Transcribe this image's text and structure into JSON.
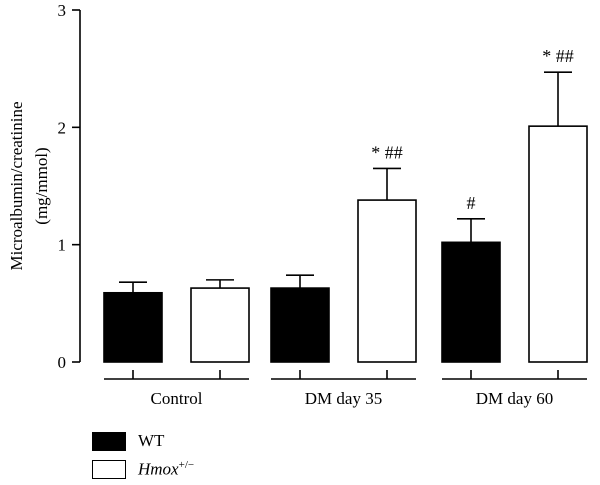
{
  "chart_data": {
    "type": "bar",
    "ylabel_line1": "Microalbumin/creatinine",
    "ylabel_line2": "(mg/mmol)",
    "ylim": [
      0,
      3
    ],
    "yticks": [
      "0",
      "1",
      "2",
      "3"
    ],
    "groups": [
      "Control",
      "DM day 35",
      "DM day 60"
    ],
    "series": [
      {
        "name": "WT",
        "color": "#000000",
        "values": [
          0.59,
          0.63,
          1.02
        ],
        "errors": [
          0.09,
          0.11,
          0.2
        ],
        "annotations": [
          "",
          "",
          "#"
        ]
      },
      {
        "name": "Hmox",
        "superscript": "+/−",
        "color": "#ffffff",
        "values": [
          0.63,
          1.38,
          2.01
        ],
        "errors": [
          0.07,
          0.27,
          0.46
        ],
        "annotations": [
          "",
          "* ##",
          "* ##"
        ]
      }
    ],
    "grid": false,
    "legend_position": "bottom-left"
  },
  "legend": {
    "wt_label": "WT",
    "hmox_label": "Hmox",
    "hmox_superscript": "+/−"
  }
}
